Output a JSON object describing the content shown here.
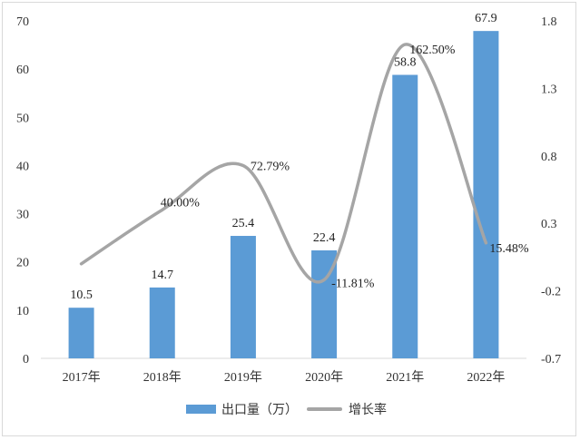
{
  "chart_data": {
    "type": "bar+line",
    "categories": [
      "2017年",
      "2018年",
      "2019年",
      "2020年",
      "2021年",
      "2022年"
    ],
    "series": [
      {
        "name": "出口量（万）",
        "type": "bar",
        "axis": "left",
        "color": "#5b9bd5",
        "values": [
          10.5,
          14.7,
          25.4,
          22.4,
          58.8,
          67.9
        ],
        "labels": [
          "10.5",
          "14.7",
          "25.4",
          "22.4",
          "58.8",
          "67.9"
        ]
      },
      {
        "name": "增长率",
        "type": "line",
        "axis": "right",
        "color": "#a5a5a5",
        "smooth": true,
        "values": [
          0.0,
          0.4,
          0.7279,
          -0.1181,
          1.625,
          0.1548
        ],
        "labels": [
          "",
          "40.00%",
          "72.79%",
          "-11.81%",
          "162.50%",
          "15.48%"
        ]
      }
    ],
    "y_left": {
      "min": 0,
      "max": 70,
      "ticks": [
        "0",
        "10",
        "20",
        "30",
        "40",
        "50",
        "60",
        "70"
      ]
    },
    "y_right": {
      "min": -0.7,
      "max": 1.8,
      "ticks": [
        "-0.7",
        "-0.2",
        "0.3",
        "0.8",
        "1.3",
        "1.8"
      ]
    },
    "legend": "bottom",
    "grid": false
  }
}
